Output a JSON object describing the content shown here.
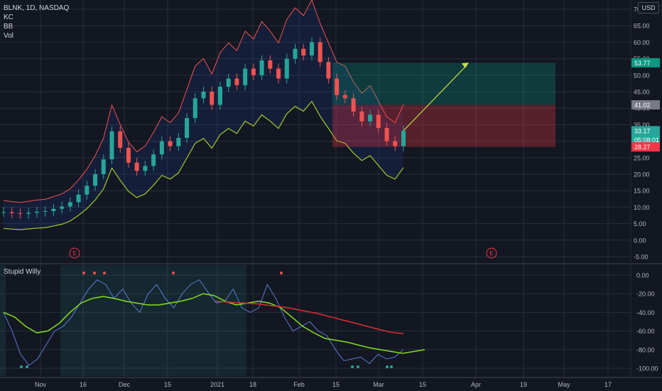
{
  "header": {
    "symbol_line": "BLNK, 1D, NASDAQ",
    "indicators": [
      "KC",
      "BB",
      "Vol"
    ],
    "currency": "USD"
  },
  "indicator_pane": {
    "title": "Stupid Willy"
  },
  "chart_data": [
    {
      "type": "candlestick",
      "title": "BLNK, 1D, NASDAQ",
      "x_tick_labels": [
        "Nov",
        "16",
        "Dec",
        "15",
        "2021",
        "18",
        "Feb",
        "15",
        "Mar",
        "15",
        "Apr",
        "19",
        "May",
        "17"
      ],
      "y_tick_labels": [
        "70",
        "65.00",
        "60.00",
        "55.00",
        "50.00",
        "45.00",
        "40.00",
        "35.00",
        "30.00",
        "25.00",
        "20.00",
        "15.00",
        "10.00",
        "5.00",
        "0.00",
        "-5.00"
      ],
      "ylim": [
        -5,
        70
      ],
      "grid": true,
      "price_labels": [
        {
          "text": "53.77",
          "value": 53.77,
          "color": "#089981"
        },
        {
          "text": "41.02",
          "value": 41.02,
          "color": "#787b86"
        },
        {
          "text": "33.17",
          "value": 33.17,
          "color": "#26a69a",
          "sub": "05:08:01"
        },
        {
          "text": "28.27",
          "value": 28.27,
          "color": "#f23645"
        }
      ],
      "position": {
        "entry": 41.02,
        "target": 53.77,
        "stop": 28.27
      },
      "earnings_markers": [
        "E",
        "E"
      ],
      "close_approx": [
        8.5,
        8.2,
        8.0,
        8.3,
        8.6,
        8.8,
        9.5,
        10.2,
        11.5,
        13.8,
        16.5,
        20.0,
        24.5,
        33.0,
        28.0,
        23.5,
        21.0,
        22.5,
        26.0,
        30.0,
        28.5,
        31.0,
        37.0,
        43.0,
        45.0,
        41.0,
        46.5,
        49.0,
        47.0,
        52.0,
        50.0,
        54.5,
        52.0,
        49.0,
        55.0,
        58.0,
        56.0,
        60.0,
        54.0,
        49.0,
        44.0,
        43.0,
        39.0,
        36.0,
        38.0,
        34.0,
        30.0,
        28.5,
        33.17
      ]
    },
    {
      "type": "line",
      "title": "Stupid Willy",
      "y_tick_labels": [
        "0.00",
        "-20.00",
        "-40.00",
        "-60.00",
        "-80.00",
        "-100.00"
      ],
      "ylim": [
        -100,
        0
      ],
      "series": [
        {
          "color": "#5b7bd5",
          "values": [
            -40,
            -60,
            -85,
            -97,
            -90,
            -75,
            -60,
            -55,
            -45,
            -30,
            -15,
            -5,
            -10,
            -25,
            -15,
            -30,
            -40,
            -20,
            -10,
            -25,
            -35,
            -20,
            -10,
            -5,
            -18,
            -30,
            -28,
            -15,
            -35,
            -40,
            -35,
            -10,
            -25,
            -45,
            -60,
            -55,
            -50,
            -60,
            -65,
            -80,
            -92,
            -90,
            -88,
            -95,
            -85,
            -90,
            -88,
            -80
          ]
        },
        {
          "color": "#7ed321",
          "values": [
            -40,
            -45,
            -55,
            -62,
            -60,
            -52,
            -40,
            -30,
            -25,
            -23,
            -25,
            -28,
            -30,
            -32,
            -32,
            -30,
            -28,
            -25,
            -20,
            -22,
            -28,
            -32,
            -30,
            -28,
            -30,
            -35,
            -45,
            -55,
            -62,
            -68,
            -70,
            -72,
            -75,
            -78,
            -80,
            -82,
            -84,
            -82,
            -80
          ]
        },
        {
          "color": "#d32f2f",
          "values": [
            -28,
            -29,
            -30,
            -31,
            -33,
            -35,
            -38,
            -41,
            -45,
            -49,
            -53,
            -57,
            -61,
            -63
          ]
        }
      ]
    }
  ]
}
